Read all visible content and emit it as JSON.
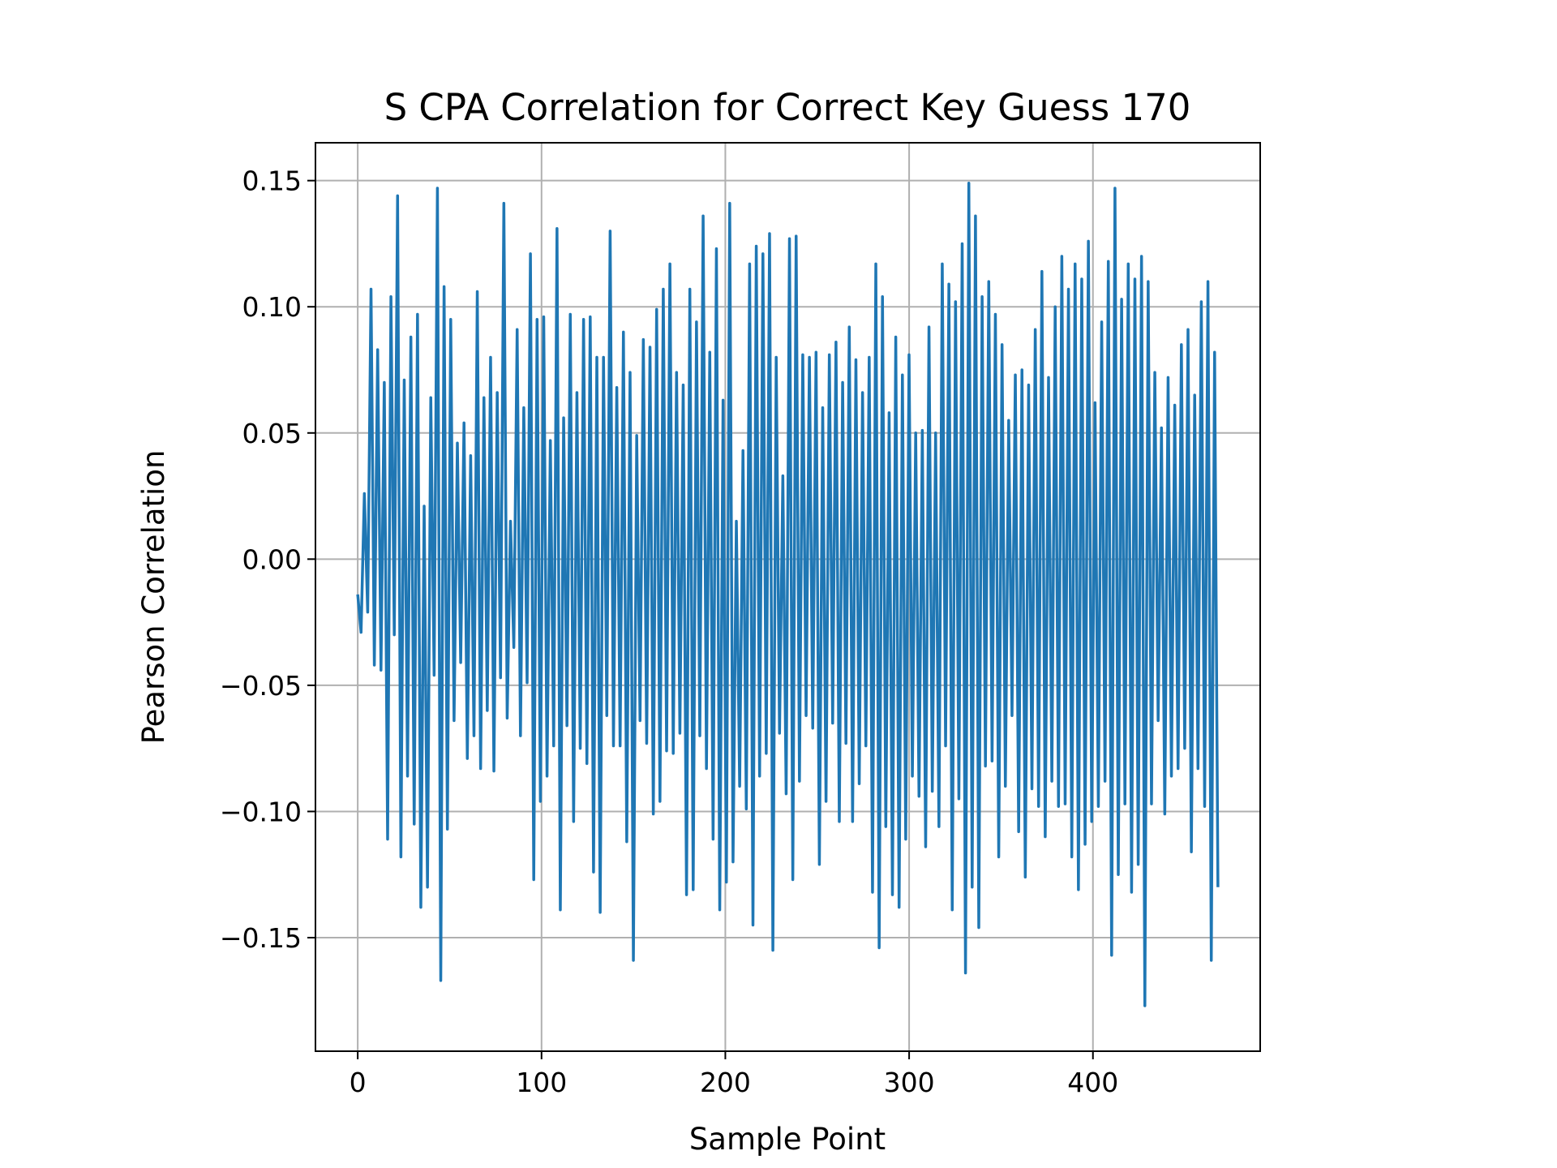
{
  "chart_data": {
    "type": "line",
    "title": "S CPA Correlation for Correct Key Guess 170",
    "xlabel": "Sample Point",
    "ylabel": "Pearson Correlation",
    "xlim": [
      -23,
      491
    ],
    "ylim": [
      -0.195,
      0.165
    ],
    "grid": true,
    "line_color": "#1f77b4",
    "grid_color": "#b0b0b0",
    "x_ticks": [
      0,
      100,
      200,
      300,
      400
    ],
    "x_tick_labels": [
      "0",
      "100",
      "200",
      "300",
      "400"
    ],
    "y_ticks": [
      0.15,
      0.1,
      0.05,
      0.0,
      -0.05,
      -0.1,
      -0.15
    ],
    "y_tick_labels": [
      "0.15",
      "0.10",
      "0.05",
      "0.00",
      "−0.05",
      "−0.10",
      "−0.15"
    ],
    "x_start": 0,
    "series": [
      {
        "values": [
          -0.014,
          -0.029,
          0.026,
          -0.021,
          0.107,
          -0.042,
          0.083,
          -0.044,
          0.07,
          -0.111,
          0.104,
          -0.03,
          0.144,
          -0.118,
          0.071,
          -0.086,
          0.088,
          -0.105,
          0.097,
          -0.138,
          0.021,
          -0.13,
          0.064,
          -0.046,
          0.147,
          -0.167,
          0.108,
          -0.107,
          0.095,
          -0.064,
          0.046,
          -0.041,
          0.054,
          -0.079,
          0.041,
          -0.07,
          0.106,
          -0.083,
          0.064,
          -0.06,
          0.08,
          -0.084,
          0.066,
          -0.047,
          0.141,
          -0.063,
          0.015,
          -0.035,
          0.091,
          -0.07,
          0.06,
          -0.049,
          0.121,
          -0.127,
          0.095,
          -0.096,
          0.096,
          -0.086,
          0.047,
          -0.074,
          0.131,
          -0.139,
          0.056,
          -0.066,
          0.097,
          -0.104,
          0.066,
          -0.075,
          0.095,
          -0.081,
          0.096,
          -0.124,
          0.08,
          -0.14,
          0.08,
          -0.062,
          0.13,
          -0.074,
          0.068,
          -0.074,
          0.09,
          -0.112,
          0.074,
          -0.159,
          0.049,
          -0.064,
          0.087,
          -0.073,
          0.084,
          -0.101,
          0.099,
          -0.096,
          0.107,
          -0.076,
          0.117,
          -0.077,
          0.074,
          -0.069,
          0.069,
          -0.133,
          0.107,
          -0.131,
          0.094,
          -0.07,
          0.136,
          -0.083,
          0.082,
          -0.111,
          0.123,
          -0.139,
          0.063,
          -0.128,
          0.141,
          -0.12,
          0.015,
          -0.09,
          0.043,
          -0.099,
          0.117,
          -0.145,
          0.124,
          -0.086,
          0.121,
          -0.077,
          0.129,
          -0.155,
          0.08,
          -0.069,
          0.033,
          -0.093,
          0.127,
          -0.127,
          0.128,
          -0.088,
          0.081,
          -0.062,
          0.08,
          -0.067,
          0.082,
          -0.121,
          0.06,
          -0.096,
          0.081,
          -0.065,
          0.086,
          -0.104,
          0.07,
          -0.073,
          0.092,
          -0.104,
          0.079,
          -0.089,
          0.066,
          -0.074,
          0.08,
          -0.132,
          0.117,
          -0.154,
          0.104,
          -0.106,
          0.058,
          -0.133,
          0.088,
          -0.138,
          0.073,
          -0.111,
          0.081,
          -0.086,
          0.05,
          -0.094,
          0.051,
          -0.114,
          0.092,
          -0.092,
          0.05,
          -0.106,
          0.117,
          -0.074,
          0.109,
          -0.139,
          0.102,
          -0.095,
          0.125,
          -0.164,
          0.149,
          -0.13,
          0.136,
          -0.146,
          0.104,
          -0.082,
          0.11,
          -0.08,
          0.097,
          -0.118,
          0.085,
          -0.09,
          0.055,
          -0.062,
          0.073,
          -0.108,
          0.075,
          -0.126,
          0.069,
          -0.091,
          0.091,
          -0.098,
          0.114,
          -0.11,
          0.072,
          -0.088,
          0.1,
          -0.098,
          0.12,
          -0.097,
          0.107,
          -0.118,
          0.117,
          -0.131,
          0.111,
          -0.113,
          0.126,
          -0.104,
          0.062,
          -0.098,
          0.094,
          -0.088,
          0.118,
          -0.157,
          0.147,
          -0.125,
          0.103,
          -0.097,
          0.117,
          -0.132,
          0.111,
          -0.121,
          0.12,
          -0.177,
          0.11,
          -0.097,
          0.074,
          -0.064,
          0.052,
          -0.101,
          0.072,
          -0.086,
          0.061,
          -0.083,
          0.085,
          -0.075,
          0.091,
          -0.116,
          0.065,
          -0.083,
          0.102,
          -0.098,
          0.11,
          -0.159,
          0.082,
          -0.13
        ]
      }
    ]
  }
}
